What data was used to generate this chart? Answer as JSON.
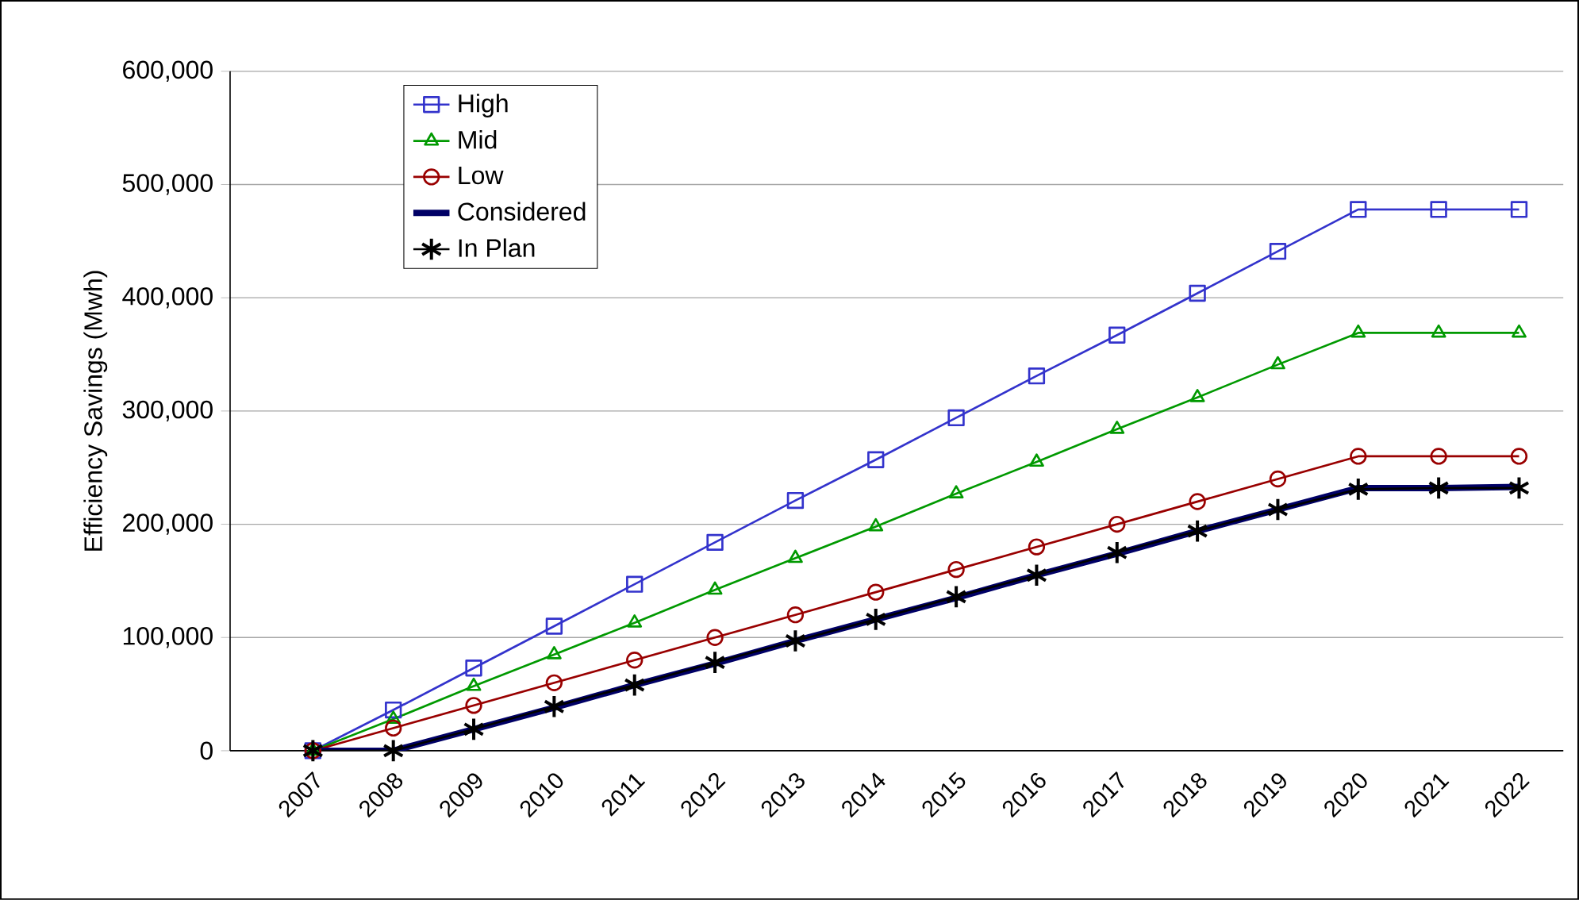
{
  "chart_data": {
    "type": "line",
    "ylabel": "Efficiency Savings (Mwh)",
    "categories": [
      "2007",
      "2008",
      "2009",
      "2010",
      "2011",
      "2012",
      "2013",
      "2014",
      "2015",
      "2016",
      "2017",
      "2018",
      "2019",
      "2020",
      "2021",
      "2022"
    ],
    "ylim": [
      0,
      600000
    ],
    "yticks": [
      {
        "value": 0,
        "label": "0"
      },
      {
        "value": 100000,
        "label": "100,000"
      },
      {
        "value": 200000,
        "label": "200,000"
      },
      {
        "value": 300000,
        "label": "300,000"
      },
      {
        "value": 400000,
        "label": "400,000"
      },
      {
        "value": 500000,
        "label": "500,000"
      },
      {
        "value": 600000,
        "label": "600,000"
      }
    ],
    "grid": "y",
    "legend": "top left",
    "series": [
      {
        "name": "High",
        "color": "#3333cc",
        "marker": "square",
        "values": [
          0,
          36000,
          73000,
          110000,
          147000,
          184000,
          221000,
          257000,
          294000,
          331000,
          367000,
          404000,
          441000,
          478000,
          478000,
          478000
        ]
      },
      {
        "name": "Mid",
        "color": "#009900",
        "marker": "triangle",
        "values": [
          0,
          28000,
          57000,
          85000,
          113000,
          142000,
          170000,
          198000,
          227000,
          255000,
          284000,
          312000,
          341000,
          369000,
          369000,
          369000
        ]
      },
      {
        "name": "Low",
        "color": "#990000",
        "marker": "circle",
        "values": [
          0,
          20000,
          40000,
          60000,
          80000,
          100000,
          120000,
          140000,
          160000,
          180000,
          200000,
          220000,
          240000,
          260000,
          260000,
          260000
        ]
      },
      {
        "name": "Considered",
        "color": "#000066",
        "marker": "none",
        "values": [
          0,
          0,
          19000,
          38000,
          58000,
          77000,
          97000,
          116000,
          135000,
          155000,
          174000,
          194000,
          213000,
          232000,
          232000,
          233000
        ]
      },
      {
        "name": "In Plan",
        "color": "#000000",
        "marker": "cross",
        "values": [
          0,
          0,
          19000,
          39000,
          58000,
          78000,
          97000,
          116000,
          136000,
          155000,
          175000,
          194000,
          213000,
          231000,
          232000,
          232000
        ]
      }
    ]
  }
}
